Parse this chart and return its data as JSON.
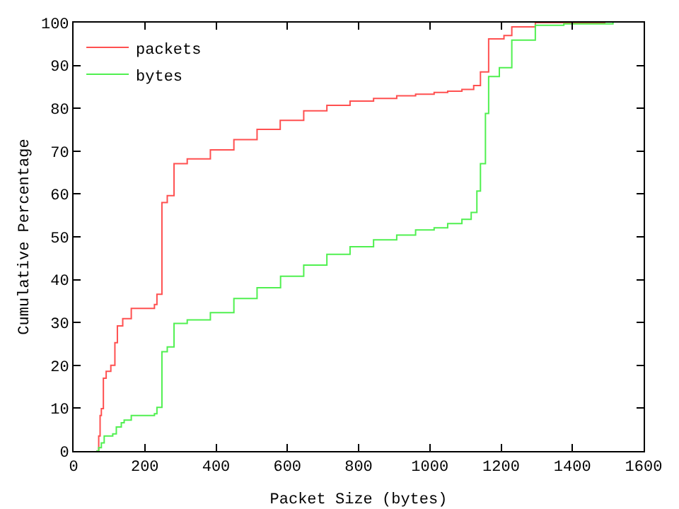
{
  "chart_data": {
    "type": "step",
    "xlabel": "Packet Size (bytes)",
    "ylabel": "Cumulative Percentage",
    "xlim": [
      0,
      1600
    ],
    "ylim": [
      0,
      100
    ],
    "xticks": [
      0,
      200,
      400,
      600,
      800,
      1000,
      1200,
      1400,
      1600
    ],
    "yticks": [
      0,
      10,
      20,
      30,
      40,
      50,
      60,
      70,
      80,
      90,
      100
    ],
    "grid": false,
    "legend": "top left",
    "marker": "none",
    "line_style": "solid",
    "series": [
      {
        "name": "packets",
        "color": "#ff5050",
        "x": [
          64,
          70.6,
          74.5,
          78,
          83.7,
          91.5,
          104.6,
          116,
          123,
          138,
          162,
          227,
          234,
          248,
          263,
          282,
          319,
          384,
          450,
          515,
          580,
          646,
          711,
          776,
          842,
          907,
          960,
          1012,
          1050,
          1090,
          1123,
          1142,
          1165,
          1208,
          1230,
          1296,
          1493
        ],
        "values": [
          0,
          3.5,
          8.3,
          9.9,
          17,
          18.6,
          20,
          25.3,
          29.2,
          30.9,
          33.3,
          34.2,
          36.6,
          58,
          59.6,
          67.1,
          68.2,
          70.3,
          72.7,
          75.1,
          77.2,
          79.4,
          80.7,
          81.7,
          82.3,
          82.9,
          83.3,
          83.7,
          84,
          84.4,
          85.3,
          88.5,
          96.2,
          97,
          99,
          100,
          100
        ]
      },
      {
        "name": "bytes",
        "color": "#50f050",
        "x": [
          64,
          70.6,
          78,
          86,
          110,
          120,
          134,
          142,
          162,
          227,
          234,
          248,
          263,
          282,
          319,
          384,
          450,
          515,
          581,
          646,
          711,
          776,
          842,
          907,
          960,
          1012,
          1050,
          1090,
          1116,
          1132,
          1142,
          1156,
          1165,
          1195,
          1230,
          1296,
          1376,
          1514
        ],
        "values": [
          0,
          0.8,
          1.9,
          3.5,
          4,
          5.6,
          6.6,
          7.2,
          8.3,
          8.7,
          10.2,
          23.2,
          24.3,
          29.8,
          30.6,
          32.3,
          35.6,
          38.1,
          40.8,
          43.4,
          45.9,
          47.7,
          49.3,
          50.4,
          51.6,
          52.1,
          53.1,
          54.1,
          55.7,
          60.7,
          67.1,
          78.8,
          87.4,
          89.5,
          95.9,
          99.4,
          99.7,
          100
        ]
      }
    ]
  }
}
